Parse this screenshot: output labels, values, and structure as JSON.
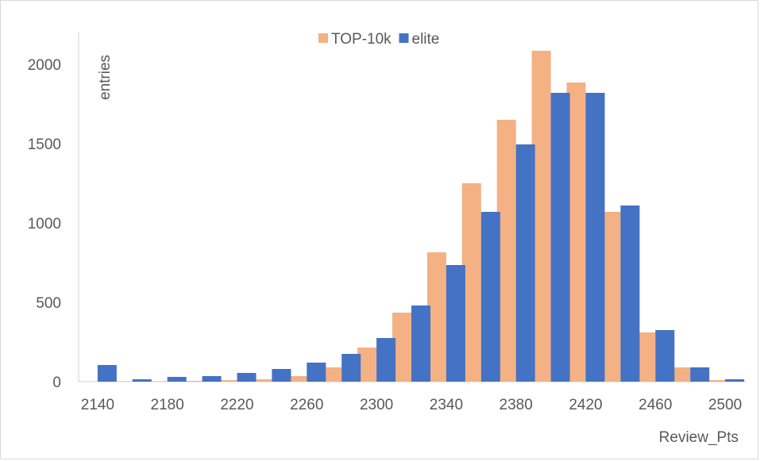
{
  "chart_data": {
    "type": "bar",
    "xlabel": "Review_Pts",
    "ylabel": "entries",
    "ylim": [
      0,
      2200
    ],
    "yticks": [
      "0",
      "500",
      "1000",
      "1500",
      "2000"
    ],
    "xticks": [
      "2140",
      "2180",
      "2220",
      "2260",
      "2300",
      "2340",
      "2380",
      "2420",
      "2460",
      "2500"
    ],
    "bins_start": 2140,
    "bin_width": 20,
    "grid": false,
    "legend_position": "top-center",
    "series": [
      {
        "name": "TOP-10k",
        "color": "#F4B183",
        "values": [
          0,
          3,
          3,
          5,
          10,
          15,
          35,
          90,
          215,
          435,
          815,
          1250,
          1650,
          2085,
          1885,
          1070,
          310,
          90,
          10
        ]
      },
      {
        "name": "elite",
        "color": "#4472C4",
        "values": [
          105,
          15,
          30,
          35,
          55,
          80,
          120,
          175,
          275,
          480,
          735,
          1070,
          1495,
          1820,
          1820,
          1110,
          325,
          90,
          15
        ]
      }
    ]
  }
}
